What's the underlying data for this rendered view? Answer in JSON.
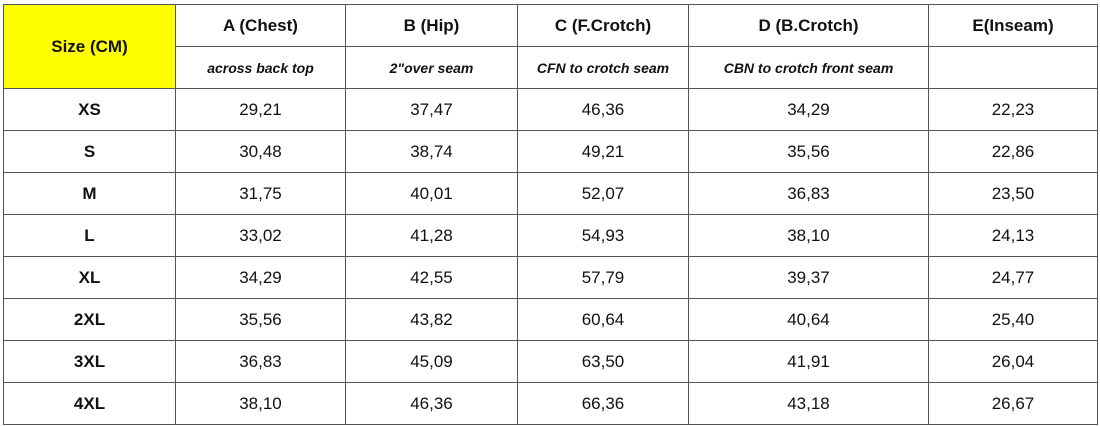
{
  "table": {
    "corner": "Size (CM)",
    "columns": [
      {
        "title": "A (Chest)",
        "note": "across  back top"
      },
      {
        "title": "B (Hip)",
        "note": "2\"over seam"
      },
      {
        "title": "C (F.Crotch)",
        "note": "CFN to crotch seam"
      },
      {
        "title": "D (B.Crotch)",
        "note": "CBN  to crotch front seam"
      },
      {
        "title": "E(Inseam)"
      }
    ],
    "rows": [
      {
        "size": "XS",
        "values": [
          "29,21",
          "37,47",
          "46,36",
          "34,29",
          "22,23"
        ]
      },
      {
        "size": "S",
        "values": [
          "30,48",
          "38,74",
          "49,21",
          "35,56",
          "22,86"
        ]
      },
      {
        "size": "M",
        "values": [
          "31,75",
          "40,01",
          "52,07",
          "36,83",
          "23,50"
        ]
      },
      {
        "size": "L",
        "values": [
          "33,02",
          "41,28",
          "54,93",
          "38,10",
          "24,13"
        ]
      },
      {
        "size": "XL",
        "values": [
          "34,29",
          "42,55",
          "57,79",
          "39,37",
          "24,77"
        ]
      },
      {
        "size": "2XL",
        "values": [
          "35,56",
          "43,82",
          "60,64",
          "40,64",
          "25,40"
        ]
      },
      {
        "size": "3XL",
        "values": [
          "36,83",
          "45,09",
          "63,50",
          "41,91",
          "26,04"
        ]
      },
      {
        "size": "4XL",
        "values": [
          "38,10",
          "46,36",
          "66,36",
          "43,18",
          "26,67"
        ]
      }
    ]
  }
}
